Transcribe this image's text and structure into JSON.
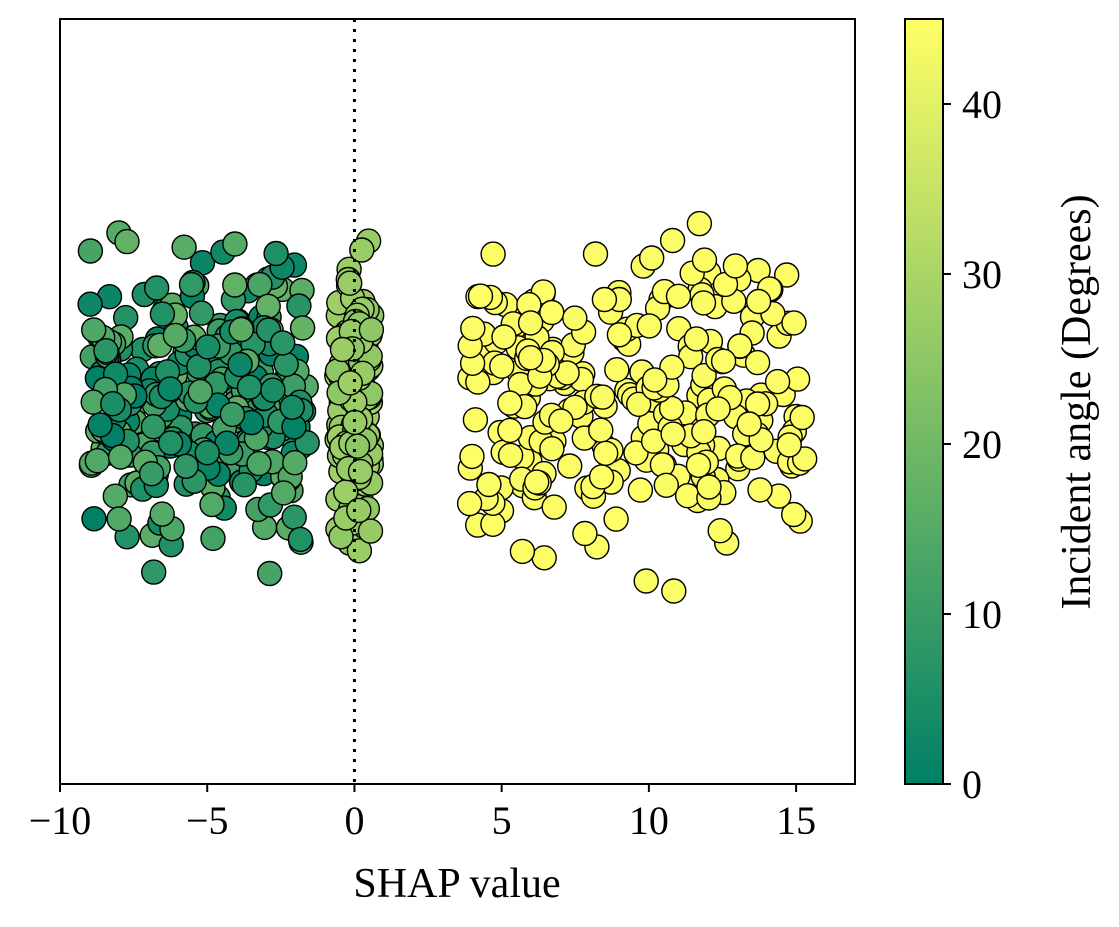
{
  "chart_data": {
    "type": "scatter",
    "title": "",
    "xlabel": "SHAP value",
    "ylabel": "",
    "xlim": [
      -10,
      17
    ],
    "x_ticks": [
      -10,
      -5,
      0,
      5,
      10,
      15
    ],
    "x_tick_labels": [
      "−10",
      "−5",
      "0",
      "5",
      "10",
      "15"
    ],
    "grid": false,
    "reference_line": {
      "x": 0,
      "style": "dotted"
    },
    "colorbar": {
      "label": "Incident angle (Degrees)",
      "range": [
        0,
        45
      ],
      "ticks": [
        0,
        10,
        20,
        30,
        40
      ],
      "tick_labels": [
        "0",
        "10",
        "20",
        "30",
        "40"
      ],
      "colors": [
        "#008066",
        "#ffff66"
      ]
    },
    "marker_edge_color": "#000000",
    "clusters": [
      {
        "x_range": [
          -9.0,
          -1.6
        ],
        "color_range": [
          0,
          18
        ],
        "count": 320
      },
      {
        "x_range": [
          -0.6,
          0.6
        ],
        "color_range": [
          25,
          28
        ],
        "count": 160
      },
      {
        "x_range": [
          3.9,
          15.3
        ],
        "color_range": [
          44,
          45
        ],
        "count": 260
      }
    ]
  }
}
